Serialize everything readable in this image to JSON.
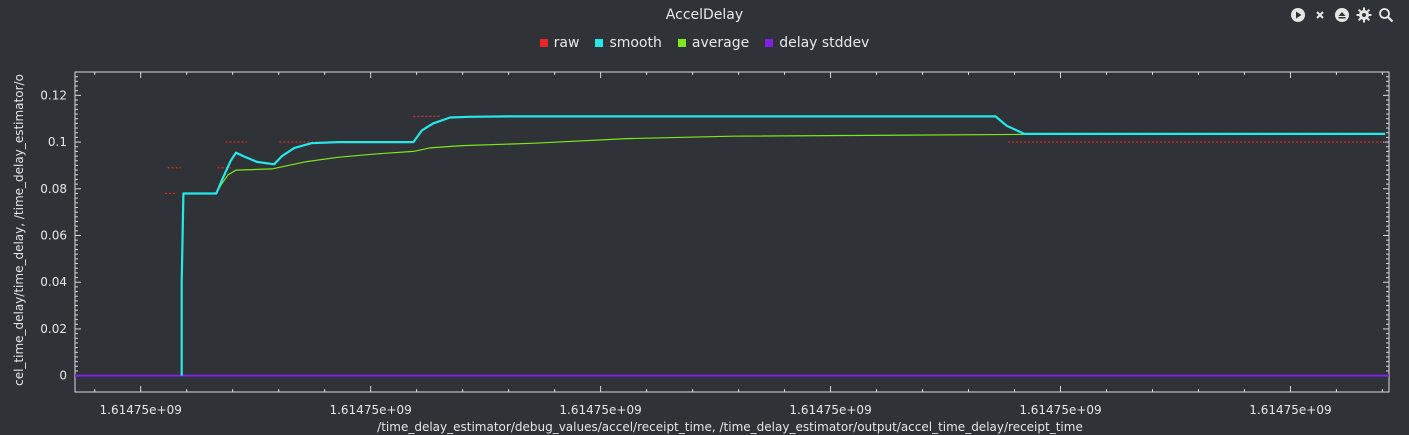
{
  "window": {
    "title": "AccelDelay"
  },
  "toolbar": [
    {
      "icon": "play-icon"
    },
    {
      "icon": "close-icon"
    },
    {
      "icon": "eject-icon"
    },
    {
      "icon": "gear-icon"
    },
    {
      "icon": "zoom-icon"
    }
  ],
  "chart_data": {
    "type": "line",
    "title": "AccelDelay",
    "xlabel": "/time_delay_estimator/debug_values/accel/receipt_time, /time_delay_estimator/output/accel_time_delay/receipt_time",
    "ylabel": "cel_time_delay/time_delay, /time_delay_estimator/o",
    "xlim": [
      0,
      1
    ],
    "ylim": [
      -0.007,
      0.13
    ],
    "x_ticks": [
      0.05,
      0.225,
      0.4,
      0.575,
      0.75,
      0.925
    ],
    "x_tick_labels": [
      "1.61475e+09",
      "1.61475e+09",
      "1.61475e+09",
      "1.61475e+09",
      "1.61475e+09",
      "1.61475e+09"
    ],
    "y_ticks": [
      0,
      0.02,
      0.04,
      0.06,
      0.08,
      0.1,
      0.12
    ],
    "y_tick_labels": [
      "0",
      "0.02",
      "0.04",
      "0.06",
      "0.08",
      "0.1",
      "0.12"
    ],
    "grid": false,
    "legend_position": "top-center",
    "series": [
      {
        "name": "raw",
        "color": "#e8272b",
        "style": "dashes",
        "segments": [
          [
            [
              0.0705,
              0.089
            ],
            [
              0.0805,
              0.089
            ]
          ],
          [
            [
              0.0685,
              0.078
            ],
            [
              0.0775,
              0.078
            ]
          ],
          [
            [
              0.1085,
              0.089
            ],
            [
              0.1185,
              0.089
            ]
          ],
          [
            [
              0.1145,
              0.1
            ],
            [
              0.131,
              0.1
            ]
          ],
          [
            [
              0.1555,
              0.1
            ],
            [
              0.193,
              0.1
            ]
          ],
          [
            [
              0.2575,
              0.111
            ],
            [
              0.2775,
              0.111
            ]
          ],
          [
            [
              0.71,
              0.1
            ],
            [
              0.997,
              0.1
            ]
          ]
        ]
      },
      {
        "name": "smooth",
        "color": "#26e8e8",
        "points": [
          [
            0.0812,
            0.0
          ],
          [
            0.0812,
            0.04
          ],
          [
            0.0825,
            0.078
          ],
          [
            0.1075,
            0.078
          ],
          [
            0.112,
            0.084
          ],
          [
            0.1185,
            0.092
          ],
          [
            0.1225,
            0.0955
          ],
          [
            0.128,
            0.094
          ],
          [
            0.1385,
            0.0915
          ],
          [
            0.1515,
            0.0905
          ],
          [
            0.1575,
            0.094
          ],
          [
            0.167,
            0.0975
          ],
          [
            0.18,
            0.0995
          ],
          [
            0.2,
            0.1
          ],
          [
            0.2575,
            0.1
          ],
          [
            0.264,
            0.105
          ],
          [
            0.2725,
            0.108
          ],
          [
            0.2855,
            0.1105
          ],
          [
            0.3,
            0.1108
          ],
          [
            0.33,
            0.111
          ],
          [
            0.7005,
            0.111
          ],
          [
            0.709,
            0.107
          ],
          [
            0.7225,
            0.1035
          ],
          [
            0.997,
            0.1035
          ]
        ]
      },
      {
        "name": "average",
        "color": "#7ce81a",
        "points": [
          [
            0.0812,
            0.0
          ],
          [
            0.0812,
            0.04
          ],
          [
            0.0825,
            0.078
          ],
          [
            0.1075,
            0.078
          ],
          [
            0.1115,
            0.082
          ],
          [
            0.1165,
            0.086
          ],
          [
            0.1225,
            0.088
          ],
          [
            0.15,
            0.0885
          ],
          [
            0.175,
            0.0915
          ],
          [
            0.2,
            0.0935
          ],
          [
            0.23,
            0.095
          ],
          [
            0.2575,
            0.096
          ],
          [
            0.27,
            0.0975
          ],
          [
            0.295,
            0.0985
          ],
          [
            0.35,
            0.0995
          ],
          [
            0.42,
            0.1015
          ],
          [
            0.5,
            0.1025
          ],
          [
            0.7225,
            0.1033
          ],
          [
            0.997,
            0.1035
          ]
        ]
      },
      {
        "name": "delay stddev",
        "color": "#7f1fe8",
        "points": [
          [
            0.0,
            0.0
          ],
          [
            1.0,
            0.0
          ]
        ]
      }
    ]
  }
}
